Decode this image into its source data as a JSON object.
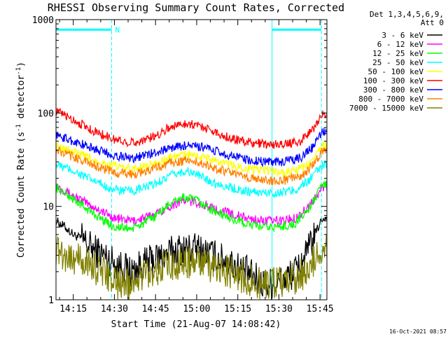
{
  "chart_data": {
    "type": "line",
    "title": "RHESSI Observing Summary Count Rates, Corrected",
    "xlabel": "Start Time (21-Aug-07 14:08:42)",
    "ylabel": "Corrected Count Rate (s",
    "ylabel_sup1": "-1",
    "ylabel_mid": " detector",
    "ylabel_sup2": "-1",
    "ylabel_end": ")",
    "yscale": "log",
    "ylim": [
      1,
      1000
    ],
    "xlim": [
      "14:08:42",
      "15:47:30"
    ],
    "x_ticks": [
      "14:15",
      "14:30",
      "14:45",
      "15:00",
      "15:15",
      "15:30",
      "15:45"
    ],
    "y_ticks": [
      "1",
      "10",
      "100",
      "1000"
    ],
    "timestamp": "16-Oct-2021 08:57",
    "legend_header": [
      "Det 1,3,4,5,6,9,",
      "Att 0"
    ],
    "annotation": {
      "label": "N",
      "bars": [
        {
          "start": "14:08:42",
          "end": "14:29:00"
        },
        {
          "start": "15:27:30",
          "end": "15:45:30"
        }
      ]
    },
    "series": [
      {
        "name": "3 - 6 keV",
        "color": "#000000",
        "x": [
          "14:08:42",
          "14:12",
          "14:15",
          "14:18",
          "14:22",
          "14:26",
          "14:30",
          "14:36",
          "14:42",
          "14:48",
          "14:54",
          "15:00",
          "15:06",
          "15:12",
          "15:18",
          "15:24",
          "15:30",
          "15:36",
          "15:40",
          "15:43",
          "15:46"
        ],
        "values": [
          7,
          6,
          5,
          4.5,
          3.5,
          3,
          2.5,
          2,
          2.5,
          3,
          3.5,
          3.5,
          3,
          2.5,
          2,
          1.5,
          1.5,
          2,
          3,
          5,
          7.5
        ]
      },
      {
        "name": "6 - 12 keV",
        "color": "#ff00ff",
        "x": [
          "14:08:42",
          "14:15",
          "14:22",
          "14:30",
          "14:37",
          "14:44",
          "14:50",
          "14:55",
          "15:00",
          "15:06",
          "15:12",
          "15:18",
          "15:24",
          "15:30",
          "15:36",
          "15:41",
          "15:46"
        ],
        "values": [
          17,
          13,
          10,
          7.5,
          7,
          8,
          10,
          11.5,
          11,
          9.5,
          8.5,
          7.5,
          7,
          7,
          7.5,
          10,
          16
        ]
      },
      {
        "name": "12 - 25 keV",
        "color": "#00ff00",
        "x": [
          "14:08:42",
          "14:15",
          "14:22",
          "14:30",
          "14:37",
          "14:44",
          "14:50",
          "14:55",
          "15:00",
          "15:06",
          "15:12",
          "15:18",
          "15:24",
          "15:30",
          "15:36",
          "15:41",
          "15:46"
        ],
        "values": [
          16,
          12,
          8.5,
          6,
          5.8,
          7.5,
          10.5,
          12.5,
          11.5,
          9,
          7.5,
          6.5,
          6,
          6,
          6.5,
          9.5,
          17
        ]
      },
      {
        "name": "25 - 50 keV",
        "color": "#00ffff",
        "x": [
          "14:08:42",
          "14:15",
          "14:22",
          "14:30",
          "14:37",
          "14:44",
          "14:50",
          "14:56",
          "15:00",
          "15:06",
          "15:12",
          "15:18",
          "15:24",
          "15:30",
          "15:36",
          "15:41",
          "15:46"
        ],
        "values": [
          28,
          24,
          19,
          15,
          14.5,
          17,
          21,
          24,
          22,
          18,
          16,
          14.5,
          14,
          14,
          15,
          19,
          28
        ]
      },
      {
        "name": "50 - 100 keV",
        "color": "#ffff00",
        "x": [
          "14:08:42",
          "14:15",
          "14:22",
          "14:30",
          "14:37",
          "14:44",
          "14:50",
          "14:56",
          "15:02",
          "15:08",
          "15:14",
          "15:20",
          "15:26",
          "15:32",
          "15:38",
          "15:42",
          "15:46"
        ],
        "values": [
          45,
          38,
          32,
          27,
          25,
          28,
          33,
          36,
          34,
          30,
          27,
          25,
          24,
          23,
          25,
          30,
          45
        ]
      },
      {
        "name": "100 - 300 keV",
        "color": "#ff0000",
        "x": [
          "14:08:42",
          "14:15",
          "14:22",
          "14:30",
          "14:37",
          "14:44",
          "14:50",
          "14:56",
          "15:02",
          "15:08",
          "15:14",
          "15:20",
          "15:26",
          "15:32",
          "15:38",
          "15:42",
          "15:46"
        ],
        "values": [
          105,
          85,
          65,
          52,
          48,
          55,
          70,
          78,
          72,
          60,
          52,
          48,
          46,
          46,
          50,
          65,
          95
        ]
      },
      {
        "name": "300 - 800 keV",
        "color": "#0000ff",
        "x": [
          "14:08:42",
          "14:15",
          "14:22",
          "14:30",
          "14:37",
          "14:44",
          "14:50",
          "14:56",
          "15:02",
          "15:08",
          "15:14",
          "15:20",
          "15:26",
          "15:32",
          "15:38",
          "15:42",
          "15:46"
        ],
        "values": [
          58,
          50,
          42,
          35,
          33,
          37,
          42,
          45,
          43,
          38,
          34,
          31,
          30,
          30,
          33,
          42,
          62
        ]
      },
      {
        "name": "800 - 7000 keV",
        "color": "#ff8000",
        "x": [
          "14:08:42",
          "14:15",
          "14:22",
          "14:30",
          "14:37",
          "14:44",
          "14:50",
          "14:56",
          "15:02",
          "15:08",
          "15:14",
          "15:20",
          "15:26",
          "15:32",
          "15:38",
          "15:42",
          "15:46"
        ],
        "values": [
          40,
          34,
          28,
          23,
          22,
          25,
          29,
          31,
          29,
          25,
          22,
          20,
          19,
          19,
          21,
          27,
          40
        ]
      },
      {
        "name": "7000 - 15000 keV",
        "color": "#808000",
        "x": [
          "14:08:42",
          "14:12",
          "14:15",
          "14:20",
          "14:25",
          "14:28",
          "14:30",
          "14:36",
          "14:42",
          "14:48",
          "14:54",
          "15:00",
          "15:06",
          "15:12",
          "15:18",
          "15:24",
          "15:30",
          "15:36",
          "15:40",
          "15:43",
          "15:46"
        ],
        "values": [
          3.5,
          3,
          2.8,
          2.5,
          2,
          1.8,
          1.5,
          1.5,
          2,
          2.2,
          2.5,
          2.5,
          2.2,
          2,
          1.7,
          1.5,
          1.5,
          1.7,
          2,
          2.8,
          3.5
        ]
      }
    ]
  }
}
